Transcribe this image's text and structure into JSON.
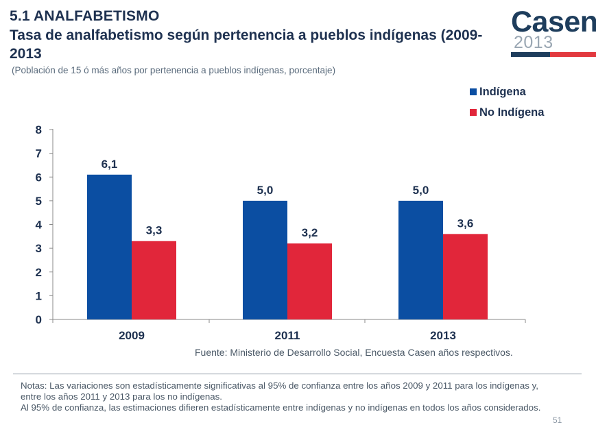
{
  "header": {
    "section_title": "5.1 ANALFABETISMO",
    "main_title": "Tasa de analfabetismo según pertenencia a pueblos indígenas (2009-2013",
    "subtitle": "(Población de 15 ó más años por pertenencia a pueblos indígenas, porcentaje)"
  },
  "logo": {
    "word": "Casen",
    "year": "2013",
    "colors": {
      "navy": "#1e3d5c",
      "red": "#e2393f"
    }
  },
  "chart_data": {
    "type": "bar",
    "title": "Tasa de analfabetismo según pertenencia a pueblos indígenas (2009-2013",
    "xlabel": "",
    "ylabel": "",
    "categories": [
      "2009",
      "2011",
      "2013"
    ],
    "ylim": [
      0,
      8
    ],
    "yticks": [
      "0",
      "1",
      "2",
      "3",
      "4",
      "5",
      "6",
      "7",
      "8"
    ],
    "grid": false,
    "legend_position": "top-right",
    "series": [
      {
        "name": "Indígena",
        "color": "#0b4ea2",
        "values": [
          6.1,
          5.0,
          5.0
        ],
        "labels": [
          "6,1",
          "5,0",
          "5,0"
        ]
      },
      {
        "name": "No Indígena",
        "color": "#e1263a",
        "values": [
          3.3,
          3.2,
          3.6
        ],
        "labels": [
          "3,3",
          "3,2",
          "3,6"
        ]
      }
    ]
  },
  "footer": {
    "source": "Fuente: Ministerio de Desarrollo Social, Encuesta Casen años respectivos.",
    "notes": [
      "Notas: Las variaciones son estadísticamente significativas al 95% de confianza entre los años 2009 y 2011 para los indígenas y, entre los años 2011 y 2013 para los no indígenas.",
      "Al 95% de confianza, las estimaciones difieren estadísticamente entre indígenas y no indígenas en todos los años considerados."
    ],
    "page_number": "51"
  }
}
